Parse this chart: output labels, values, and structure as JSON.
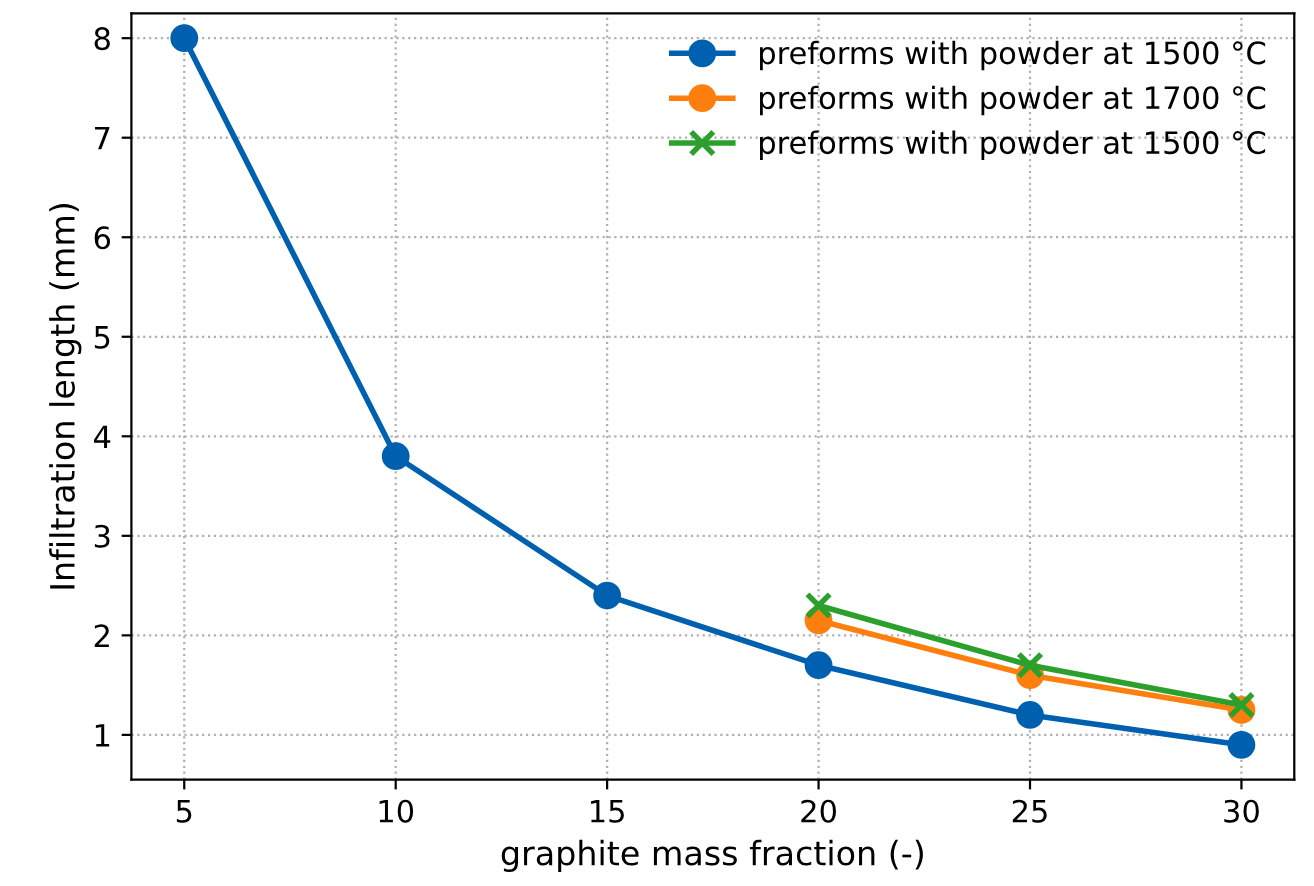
{
  "chart_data": {
    "type": "line",
    "xlabel": "graphite mass fraction (-)",
    "ylabel": "Infiltration length (mm)",
    "series": [
      {
        "name": "preforms with powder at 1500 °C",
        "color": "#0060b0",
        "marker": "circle",
        "x": [
          5,
          10,
          15,
          20,
          25,
          30
        ],
        "values": [
          8.0,
          3.8,
          2.4,
          1.7,
          1.2,
          0.9
        ]
      },
      {
        "name": "preforms with powder at 1700 °C",
        "color": "#ff7f0e",
        "marker": "circle",
        "x": [
          20,
          25,
          30
        ],
        "values": [
          2.15,
          1.6,
          1.25
        ]
      },
      {
        "name": "preforms with powder at 1500 °C",
        "color": "#2ca02c",
        "marker": "cross",
        "x": [
          20,
          25,
          30
        ],
        "values": [
          2.3,
          1.7,
          1.3
        ]
      }
    ],
    "xlim": [
      3.75,
      31.25
    ],
    "xticks": [
      5,
      10,
      15,
      20,
      25,
      30
    ],
    "ylim": [
      0.55,
      8.25
    ],
    "yticks": [
      1,
      2,
      3,
      4,
      5,
      6,
      7,
      8
    ],
    "grid": true,
    "legend": "top right",
    "line_style": "solid"
  }
}
